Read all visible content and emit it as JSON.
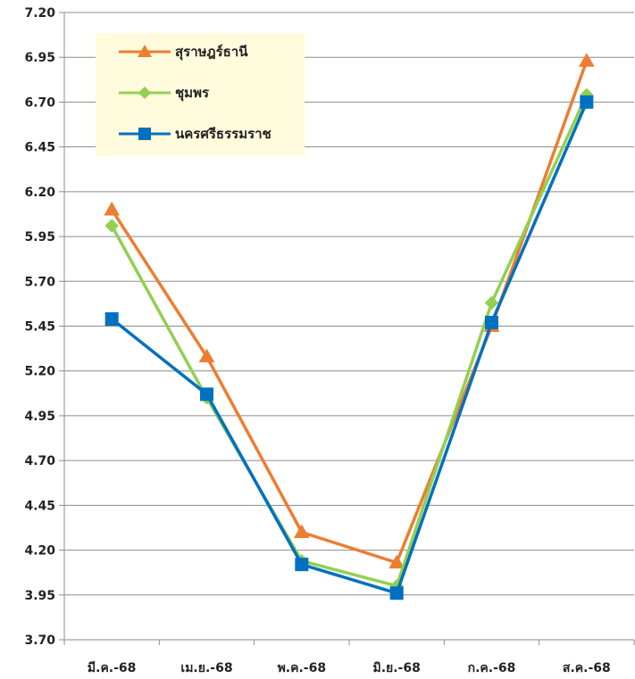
{
  "chart_data": {
    "type": "line",
    "categories": [
      "มี.ค.-68",
      "เม.ย.-68",
      "พ.ค.-68",
      "มิ.ย.-68",
      "ก.ค.-68",
      "ส.ค.-68"
    ],
    "yticks": [
      "3.70",
      "3.95",
      "4.20",
      "4.45",
      "4.70",
      "4.95",
      "5.20",
      "5.45",
      "5.70",
      "5.95",
      "6.20",
      "6.45",
      "6.70",
      "6.95",
      "7.20"
    ],
    "ylim": [
      3.7,
      7.2
    ],
    "grid": true,
    "legend_position": "top-left",
    "legend_background": "#fffbdc",
    "series": [
      {
        "name": "สุราษฎร์ธานี",
        "color": "#ed7d31",
        "marker": "triangle",
        "values": [
          6.1,
          5.28,
          4.3,
          4.13,
          5.45,
          6.93
        ]
      },
      {
        "name": "ชุมพร",
        "color": "#92d050",
        "marker": "diamond",
        "values": [
          6.01,
          5.05,
          4.14,
          4.0,
          5.58,
          6.74
        ]
      },
      {
        "name": "นครศรีธรรมราช",
        "color": "#0070c0",
        "marker": "square",
        "values": [
          5.49,
          5.07,
          4.12,
          3.96,
          5.47,
          6.7
        ]
      }
    ]
  }
}
